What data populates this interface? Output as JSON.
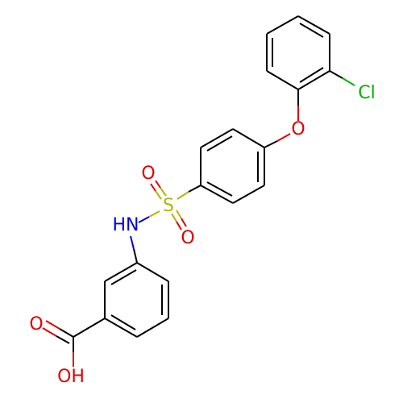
{
  "labels": [
    "Cl",
    "O",
    "O",
    "O",
    "S",
    "HN",
    "O",
    "OH"
  ]
}
